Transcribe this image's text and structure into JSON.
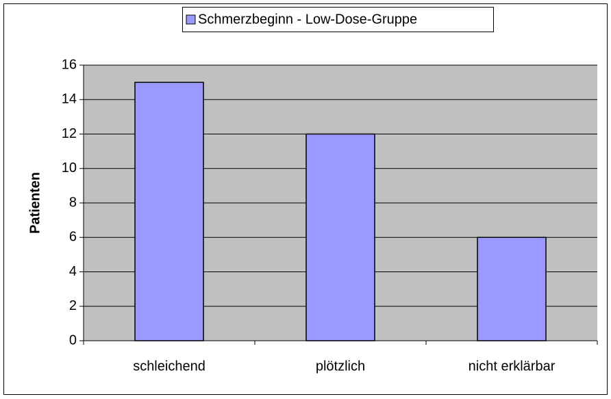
{
  "chart_data": {
    "type": "bar",
    "categories": [
      "schleichend",
      "plötzlich",
      "nicht erklärbar"
    ],
    "series": [
      {
        "name": "Schmerzbeginn - Low-Dose-Gruppe",
        "color": "#9999ff",
        "values": [
          15,
          12,
          6
        ]
      }
    ],
    "y_label": "Patienten",
    "ylim": [
      0,
      16
    ],
    "yticks": [
      0,
      2,
      4,
      6,
      8,
      10,
      12,
      14,
      16
    ],
    "grid": true,
    "legend": "top",
    "plot_background": "#c0c0c0"
  }
}
